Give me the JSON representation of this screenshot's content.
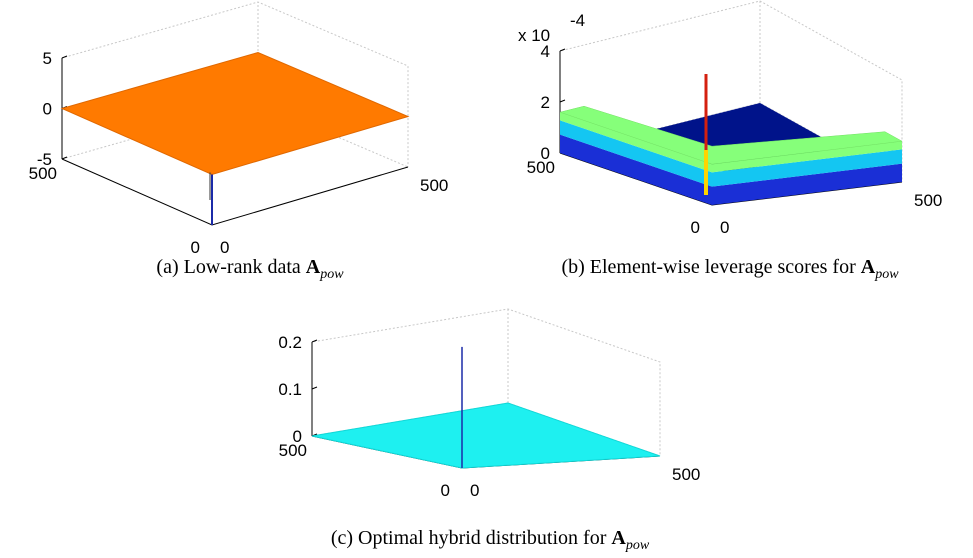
{
  "chart_data": [
    {
      "type": "surface",
      "title": "",
      "caption": {
        "prefix": "(a) Low-rank data ",
        "matrix": "A",
        "subscript": "pow"
      },
      "x_ticks": [
        "0",
        "500"
      ],
      "y_ticks": [
        "0",
        "500"
      ],
      "z_ticks": [
        "-5",
        "0",
        "5"
      ],
      "zlim": [
        -5,
        5
      ],
      "exponent_label": "",
      "surface_level": 0,
      "spike_min": -5,
      "colors": {
        "surface": "#ff7a00",
        "spike": "#1b2aa8"
      }
    },
    {
      "type": "surface",
      "title": "",
      "caption": {
        "prefix": "(b) Element-wise leverage scores for ",
        "matrix": "A",
        "subscript": "pow"
      },
      "x_ticks": [
        "0",
        "500"
      ],
      "y_ticks": [
        "0",
        "500"
      ],
      "z_ticks": [
        "0",
        "2",
        "4"
      ],
      "zlim": [
        0,
        4
      ],
      "exponent_label": "x 10",
      "exponent_power": "-4",
      "edge_level": 1.6,
      "interior_level": 0,
      "spike_max": 2.0,
      "colors": {
        "interior": "#00138a",
        "edge_low": "#1a2fd6",
        "edge_mid": "#14c6f2",
        "edge_high": "#86ff7a"
      }
    },
    {
      "type": "surface",
      "title": "",
      "caption": {
        "prefix": "(c) Optimal hybrid distribution for ",
        "matrix": "A",
        "subscript": "pow"
      },
      "x_ticks": [
        "0",
        "500"
      ],
      "y_ticks": [
        "0",
        "500"
      ],
      "z_ticks": [
        "0",
        "0.1",
        "0.2"
      ],
      "zlim": [
        0,
        0.2
      ],
      "exponent_label": "",
      "surface_level": 0,
      "spike_max": 0.13,
      "colors": {
        "surface": "#1ef0f0",
        "spike": "#1b2aa8"
      }
    }
  ]
}
